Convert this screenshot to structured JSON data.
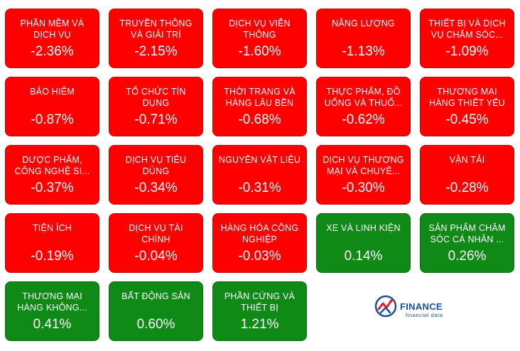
{
  "sectors": [
    {
      "name": "PHẦN MỀM VÀ DỊCH VỤ",
      "change": "-2.36%",
      "direction": "down"
    },
    {
      "name": "TRUYỀN THÔNG VÀ GIẢI TRÍ",
      "change": "-2.15%",
      "direction": "down"
    },
    {
      "name": "DỊCH VỤ VIỄN THÔNG",
      "change": "-1.60%",
      "direction": "down"
    },
    {
      "name": "NĂNG LƯỢNG",
      "change": "-1.13%",
      "direction": "down"
    },
    {
      "name": "THIẾT BỊ VÀ DỊCH VỤ CHĂM SÓC...",
      "change": "-1.09%",
      "direction": "down"
    },
    {
      "name": "BẢO HIỂM",
      "change": "-0.87%",
      "direction": "down"
    },
    {
      "name": "TỔ CHỨC TÍN DỤNG",
      "change": "-0.71%",
      "direction": "down"
    },
    {
      "name": "THỜI TRANG VÀ HÀNG LÂU BỀN",
      "change": "-0.68%",
      "direction": "down"
    },
    {
      "name": "THỰC PHẨM, ĐỒ UỐNG VÀ THUỐ...",
      "change": "-0.62%",
      "direction": "down"
    },
    {
      "name": "THƯƠNG MẠI HÀNG THIẾT YẾU",
      "change": "-0.45%",
      "direction": "down"
    },
    {
      "name": "DƯỢC PHẨM, CÔNG NGHỆ SI...",
      "change": "-0.37%",
      "direction": "down"
    },
    {
      "name": "DỊCH VỤ TIÊU DÙNG",
      "change": "-0.34%",
      "direction": "down"
    },
    {
      "name": "NGUYÊN VẬT LIỆU",
      "change": "-0.31%",
      "direction": "down"
    },
    {
      "name": "DỊCH VỤ THƯƠNG MẠI VÀ CHUYÊ...",
      "change": "-0.30%",
      "direction": "down"
    },
    {
      "name": "VẬN TẢI",
      "change": "-0.28%",
      "direction": "down"
    },
    {
      "name": "TIỆN ÍCH",
      "change": "-0.19%",
      "direction": "down"
    },
    {
      "name": "DỊCH VỤ TÀI CHÍNH",
      "change": "-0.04%",
      "direction": "down"
    },
    {
      "name": "HÀNG HÓA CÔNG NGHIỆP",
      "change": "-0.03%",
      "direction": "down"
    },
    {
      "name": "XE VÀ LINH KIỆN",
      "change": "0.14%",
      "direction": "up"
    },
    {
      "name": "SẢN PHẨM CHĂM SÓC CÁ NHÂN ...",
      "change": "0.26%",
      "direction": "up"
    },
    {
      "name": "THƯƠNG MẠI HÀNG KHÔNG...",
      "change": "0.41%",
      "direction": "up"
    },
    {
      "name": "BẤT ĐỘNG SẢN",
      "change": "0.60%",
      "direction": "up"
    },
    {
      "name": "PHẦN CỨNG VÀ THIẾT BỊ",
      "change": "1.21%",
      "direction": "up"
    }
  ],
  "colors": {
    "down": "#ff0000",
    "up": "#0f8a17",
    "text": "#ffffff",
    "logo": "#1d4f9c"
  },
  "logo": {
    "wordmark": "FINANCE",
    "tagline": "financial data",
    "icon": "finance-logo-icon"
  }
}
